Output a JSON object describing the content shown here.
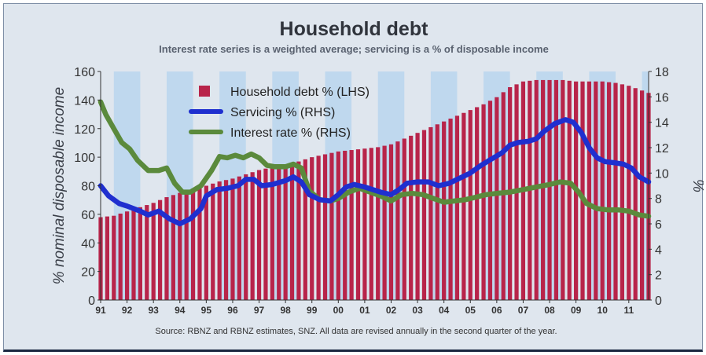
{
  "chart_data": {
    "type": "bar+line",
    "title": "Household debt",
    "subtitle": "Interest rate series is a weighted average; servicing is a % of disposable income",
    "ylabel_left": "% nominal disposable income",
    "ylabel_right": "%",
    "ylim_left": [
      0,
      160
    ],
    "ylim_right": [
      0,
      18
    ],
    "yticks_left": [
      "0",
      "20",
      "40",
      "60",
      "80",
      "100",
      "120",
      "140",
      "160"
    ],
    "yticks_right": [
      "0",
      "2",
      "4",
      "6",
      "8",
      "10",
      "12",
      "14",
      "16",
      "18"
    ],
    "x_range": [
      1991,
      2011.75
    ],
    "xtick_labels": [
      "91",
      "92",
      "93",
      "94",
      "95",
      "96",
      "97",
      "98",
      "99",
      "00",
      "01",
      "02",
      "03",
      "04",
      "05",
      "06",
      "07",
      "08",
      "09",
      "10",
      "11"
    ],
    "source": "Source: RBNZ and RBNZ estimates, SNZ. All data are revised annually in the second quarter of the year.",
    "legend_position": "top-center",
    "colors": {
      "debt": "#b8244a",
      "servicing": "#1f2fcf",
      "interest": "#5b8a3c",
      "band": "#bfd8ee",
      "plot_bg": "#dfe6ee"
    },
    "series": [
      {
        "name": "Household debt % (LHS)",
        "type": "bar",
        "axis": "left",
        "points": [
          [
            1991,
            58
          ],
          [
            1991.5,
            59
          ],
          [
            1992,
            62
          ],
          [
            1992.5,
            65
          ],
          [
            1993,
            68
          ],
          [
            1993.5,
            72
          ],
          [
            1994,
            75
          ],
          [
            1994.5,
            78
          ],
          [
            1995,
            80
          ],
          [
            1995.5,
            83
          ],
          [
            1996,
            85
          ],
          [
            1996.5,
            88
          ],
          [
            1997,
            91
          ],
          [
            1997.5,
            93
          ],
          [
            1998,
            95
          ],
          [
            1998.5,
            97
          ],
          [
            1999,
            100
          ],
          [
            1999.5,
            102
          ],
          [
            2000,
            104
          ],
          [
            2000.5,
            105
          ],
          [
            2001,
            106
          ],
          [
            2001.5,
            107
          ],
          [
            2002,
            109
          ],
          [
            2002.5,
            113
          ],
          [
            2003,
            117
          ],
          [
            2003.5,
            121
          ],
          [
            2004,
            125
          ],
          [
            2004.5,
            129
          ],
          [
            2005,
            133
          ],
          [
            2005.5,
            137
          ],
          [
            2006,
            142
          ],
          [
            2006.5,
            149
          ],
          [
            2007,
            153
          ],
          [
            2007.5,
            154
          ],
          [
            2008,
            154
          ],
          [
            2008.5,
            154
          ],
          [
            2009,
            153
          ],
          [
            2009.5,
            153
          ],
          [
            2010,
            153
          ],
          [
            2010.5,
            152
          ],
          [
            2011,
            150
          ],
          [
            2011.75,
            145
          ]
        ]
      },
      {
        "name": "Servicing % (RHS)",
        "type": "line",
        "axis": "right",
        "points": [
          [
            1991,
            9.0
          ],
          [
            1991.3,
            8.2
          ],
          [
            1991.7,
            7.6
          ],
          [
            1992,
            7.4
          ],
          [
            1992.5,
            7.0
          ],
          [
            1992.8,
            6.7
          ],
          [
            1993.2,
            7.0
          ],
          [
            1993.6,
            6.4
          ],
          [
            1994,
            6.0
          ],
          [
            1994.4,
            6.4
          ],
          [
            1994.8,
            7.2
          ],
          [
            1995,
            8.2
          ],
          [
            1995.4,
            8.7
          ],
          [
            1995.8,
            8.8
          ],
          [
            1996.2,
            9.0
          ],
          [
            1996.5,
            9.5
          ],
          [
            1996.8,
            9.5
          ],
          [
            1997.1,
            9.0
          ],
          [
            1997.5,
            9.1
          ],
          [
            1998,
            9.4
          ],
          [
            1998.3,
            9.7
          ],
          [
            1998.6,
            9.3
          ],
          [
            1998.9,
            8.3
          ],
          [
            1999.3,
            7.9
          ],
          [
            1999.7,
            7.8
          ],
          [
            2000,
            8.3
          ],
          [
            2000.3,
            8.9
          ],
          [
            2000.6,
            9.1
          ],
          [
            2001,
            8.9
          ],
          [
            2001.3,
            8.7
          ],
          [
            2001.6,
            8.5
          ],
          [
            2002,
            8.3
          ],
          [
            2002.3,
            8.7
          ],
          [
            2002.6,
            9.2
          ],
          [
            2003,
            9.3
          ],
          [
            2003.4,
            9.3
          ],
          [
            2003.8,
            9.0
          ],
          [
            2004.2,
            9.2
          ],
          [
            2004.6,
            9.6
          ],
          [
            2005,
            10.0
          ],
          [
            2005.4,
            10.6
          ],
          [
            2005.8,
            11.1
          ],
          [
            2006.2,
            11.6
          ],
          [
            2006.5,
            12.2
          ],
          [
            2006.8,
            12.4
          ],
          [
            2007.2,
            12.5
          ],
          [
            2007.5,
            12.7
          ],
          [
            2007.8,
            13.3
          ],
          [
            2008.2,
            13.9
          ],
          [
            2008.6,
            14.2
          ],
          [
            2008.9,
            14.0
          ],
          [
            2009.2,
            13.2
          ],
          [
            2009.5,
            12.0
          ],
          [
            2009.8,
            11.2
          ],
          [
            2010.1,
            10.9
          ],
          [
            2010.5,
            10.8
          ],
          [
            2010.8,
            10.7
          ],
          [
            2011.1,
            10.4
          ],
          [
            2011.4,
            9.7
          ],
          [
            2011.75,
            9.3
          ]
        ]
      },
      {
        "name": "Interest rate % (RHS)",
        "type": "line",
        "axis": "right",
        "points": [
          [
            1991,
            15.6
          ],
          [
            1991.2,
            14.6
          ],
          [
            1991.5,
            13.5
          ],
          [
            1991.8,
            12.4
          ],
          [
            1992.1,
            11.9
          ],
          [
            1992.4,
            11.0
          ],
          [
            1992.8,
            10.2
          ],
          [
            1993.2,
            10.2
          ],
          [
            1993.5,
            10.4
          ],
          [
            1993.8,
            9.2
          ],
          [
            1994.1,
            8.5
          ],
          [
            1994.4,
            8.5
          ],
          [
            1994.8,
            9.0
          ],
          [
            1995.2,
            10.2
          ],
          [
            1995.5,
            11.3
          ],
          [
            1995.8,
            11.2
          ],
          [
            1996.1,
            11.4
          ],
          [
            1996.4,
            11.2
          ],
          [
            1996.7,
            11.5
          ],
          [
            1997,
            11.2
          ],
          [
            1997.3,
            10.6
          ],
          [
            1997.6,
            10.5
          ],
          [
            1998,
            10.5
          ],
          [
            1998.3,
            10.7
          ],
          [
            1998.6,
            10.4
          ],
          [
            1998.9,
            8.6
          ],
          [
            1999.3,
            7.9
          ],
          [
            1999.7,
            7.8
          ],
          [
            2000,
            8.0
          ],
          [
            2000.4,
            8.5
          ],
          [
            2000.8,
            8.8
          ],
          [
            2001.2,
            8.5
          ],
          [
            2001.6,
            8.2
          ],
          [
            2002,
            7.8
          ],
          [
            2002.4,
            8.3
          ],
          [
            2002.8,
            8.4
          ],
          [
            2003.2,
            8.3
          ],
          [
            2003.6,
            8.0
          ],
          [
            2004,
            7.7
          ],
          [
            2004.4,
            7.8
          ],
          [
            2004.8,
            7.9
          ],
          [
            2005.2,
            8.1
          ],
          [
            2005.6,
            8.3
          ],
          [
            2006,
            8.4
          ],
          [
            2006.5,
            8.5
          ],
          [
            2007,
            8.7
          ],
          [
            2007.5,
            8.9
          ],
          [
            2008,
            9.1
          ],
          [
            2008.4,
            9.3
          ],
          [
            2008.8,
            9.2
          ],
          [
            2009.1,
            8.5
          ],
          [
            2009.4,
            7.6
          ],
          [
            2009.8,
            7.2
          ],
          [
            2010.2,
            7.1
          ],
          [
            2010.6,
            7.1
          ],
          [
            2011,
            7.0
          ],
          [
            2011.4,
            6.7
          ],
          [
            2011.75,
            6.6
          ]
        ]
      }
    ]
  }
}
